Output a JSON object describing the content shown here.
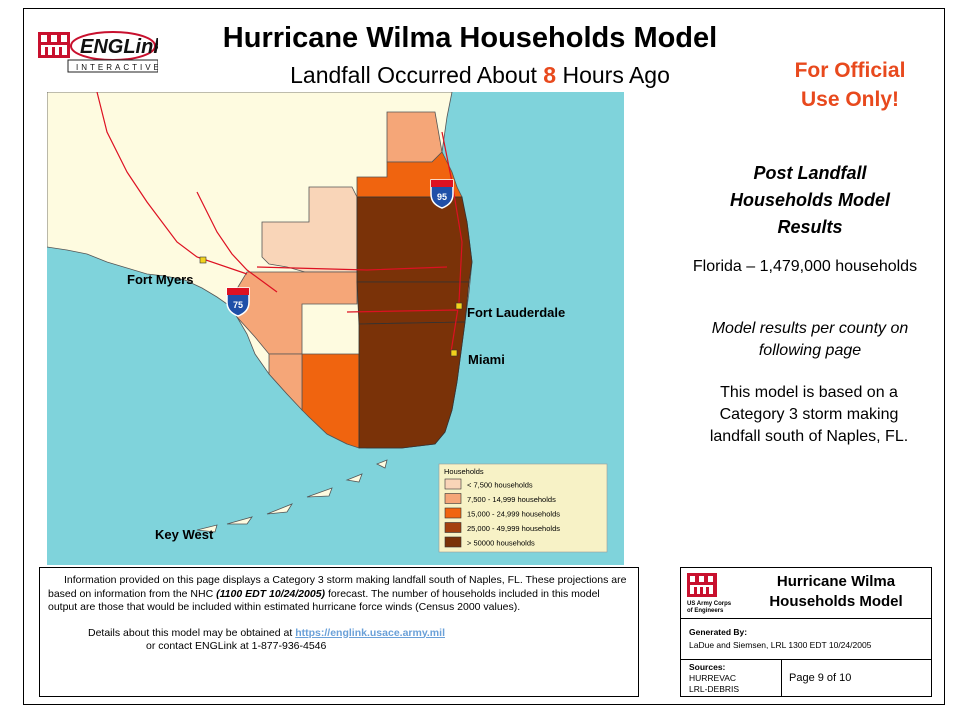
{
  "header": {
    "title": "Hurricane Wilma Households Model",
    "subtitle_prefix": "Landfall Occurred About ",
    "subtitle_hours": "8",
    "subtitle_suffix": " Hours Ago",
    "official": [
      "For Official",
      "Use Only!"
    ],
    "logo_text": "ENGLink",
    "logo_sub": "INTERACTIVE"
  },
  "map": {
    "cities": [
      "Fort Myers",
      "Fort Lauderdale",
      "Miami",
      "Key West"
    ],
    "highways": [
      "95",
      "75"
    ],
    "legend": {
      "title": "Households",
      "items": [
        {
          "label": "< 7,500 households",
          "color": "#f9d5b8"
        },
        {
          "label": "7,500 - 14,999 households",
          "color": "#f5a678"
        },
        {
          "label": "15,000 - 24,999 households",
          "color": "#f0640f"
        },
        {
          "label": "25,000 - 49,999 households",
          "color": "#a4400e"
        },
        {
          "label": "> 50000 households",
          "color": "#7a3208"
        }
      ]
    },
    "colors": {
      "water": "#7fd3db",
      "land": "#fefbe0"
    }
  },
  "results": {
    "title_lines": [
      "Post Landfall",
      "Households Model",
      "Results"
    ],
    "florida": "Florida – 1,479,000 households",
    "model_note_lines": [
      "Model results per county on",
      "following page"
    ],
    "basis_lines": [
      "This model is based on a",
      "Category 3 storm making",
      "landfall south of Naples, FL."
    ]
  },
  "info": {
    "p1_a": "Information provided on this page displays a Category 3 storm making landfall south of Naples, FL. These projections are based on information from the NHC ",
    "p1_it": "(1100 EDT  10/24/2005)",
    "p1_b": " forecast.  The number of households included in this model output are those that would be included within estimated hurricane force winds (Census 2000 values).",
    "details": "Details about this model may be obtained at  ",
    "link": "https://englink.usace.army.mil",
    "contact": "or  contact ENGLink at 1-877-936-4546"
  },
  "titleblock": {
    "name_lines": [
      "Hurricane Wilma",
      "Households Model"
    ],
    "usace_lines": [
      "US Army Corps",
      "of Engineers"
    ],
    "generated_label": "Generated By:",
    "generated_value": "LaDue and Siemsen, LRL  1300 EDT  10/24/2005",
    "sources_label": "Sources:",
    "sources": [
      "HURREVAC",
      "LRL-DEBRIS"
    ],
    "page": "Page 9 of 10"
  }
}
